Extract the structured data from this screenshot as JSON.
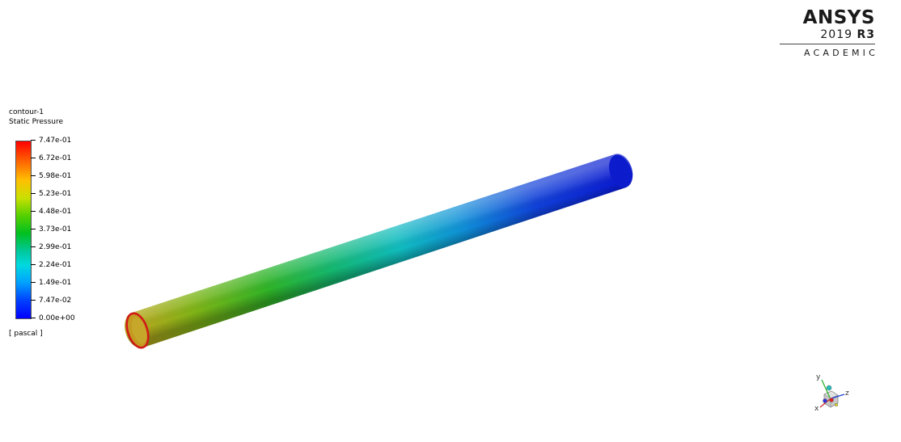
{
  "logo": {
    "brand": "ANSYS",
    "version": "2019",
    "release": "R3",
    "edition": "ACADEMIC"
  },
  "legend": {
    "contour_name": "contour-1",
    "variable": "Static Pressure",
    "units": "[ pascal ]",
    "tick_labels": [
      "7.47e-01",
      "6.72e-01",
      "5.98e-01",
      "5.23e-01",
      "4.48e-01",
      "3.73e-01",
      "2.99e-01",
      "2.24e-01",
      "1.49e-01",
      "7.47e-02",
      "0.00e+00"
    ],
    "max_color": "#ff0000",
    "min_color": "#0000ff"
  },
  "triad": {
    "axis_x": "x",
    "axis_y": "y",
    "axis_z": "z"
  }
}
